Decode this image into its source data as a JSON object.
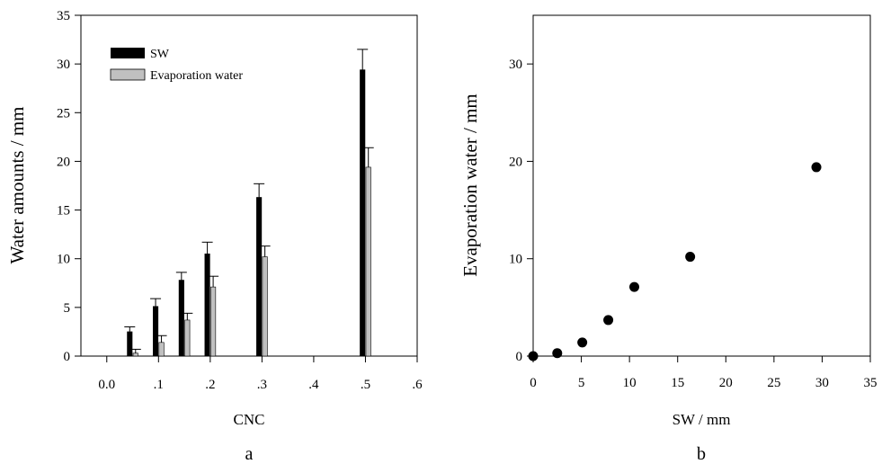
{
  "chart_data": [
    {
      "panel_label": "a",
      "type": "bar",
      "xlabel": "CNC",
      "ylabel": "Water amounts / mm",
      "xlim": [
        -0.05,
        0.6
      ],
      "ylim": [
        0,
        35
      ],
      "xticks": [
        "0.0",
        ".1",
        ".2",
        ".3",
        ".4",
        ".5",
        ".6"
      ],
      "yticks": [
        "0",
        "5",
        "10",
        "15",
        "20",
        "25",
        "30",
        "35"
      ],
      "x": [
        0.05,
        0.1,
        0.15,
        0.2,
        0.3,
        0.5
      ],
      "series": [
        {
          "name": "SW",
          "color": "#000000",
          "values": [
            2.5,
            5.1,
            7.8,
            10.5,
            16.3,
            29.4
          ],
          "errors": [
            0.5,
            0.8,
            0.8,
            1.2,
            1.4,
            2.1
          ]
        },
        {
          "name": "Evaporation water",
          "color": "#c0c0c0",
          "values": [
            0.3,
            1.4,
            3.7,
            7.1,
            10.2,
            19.4
          ],
          "errors": [
            0.4,
            0.7,
            0.7,
            1.1,
            1.1,
            2.0
          ]
        }
      ],
      "legend_position": "top-left"
    },
    {
      "panel_label": "b",
      "type": "scatter",
      "xlabel": "SW / mm",
      "ylabel": "Evaporation water / mm",
      "xlim": [
        0,
        35
      ],
      "ylim": [
        0,
        35
      ],
      "xticks": [
        "0",
        "5",
        "10",
        "15",
        "20",
        "25",
        "30",
        "35"
      ],
      "yticks": [
        "0",
        "10",
        "20",
        "30"
      ],
      "points": [
        {
          "x": 0,
          "y": 0
        },
        {
          "x": 2.5,
          "y": 0.3
        },
        {
          "x": 5.1,
          "y": 1.4
        },
        {
          "x": 7.8,
          "y": 3.7
        },
        {
          "x": 10.5,
          "y": 7.1
        },
        {
          "x": 16.3,
          "y": 10.2
        },
        {
          "x": 29.4,
          "y": 19.4
        }
      ]
    }
  ]
}
